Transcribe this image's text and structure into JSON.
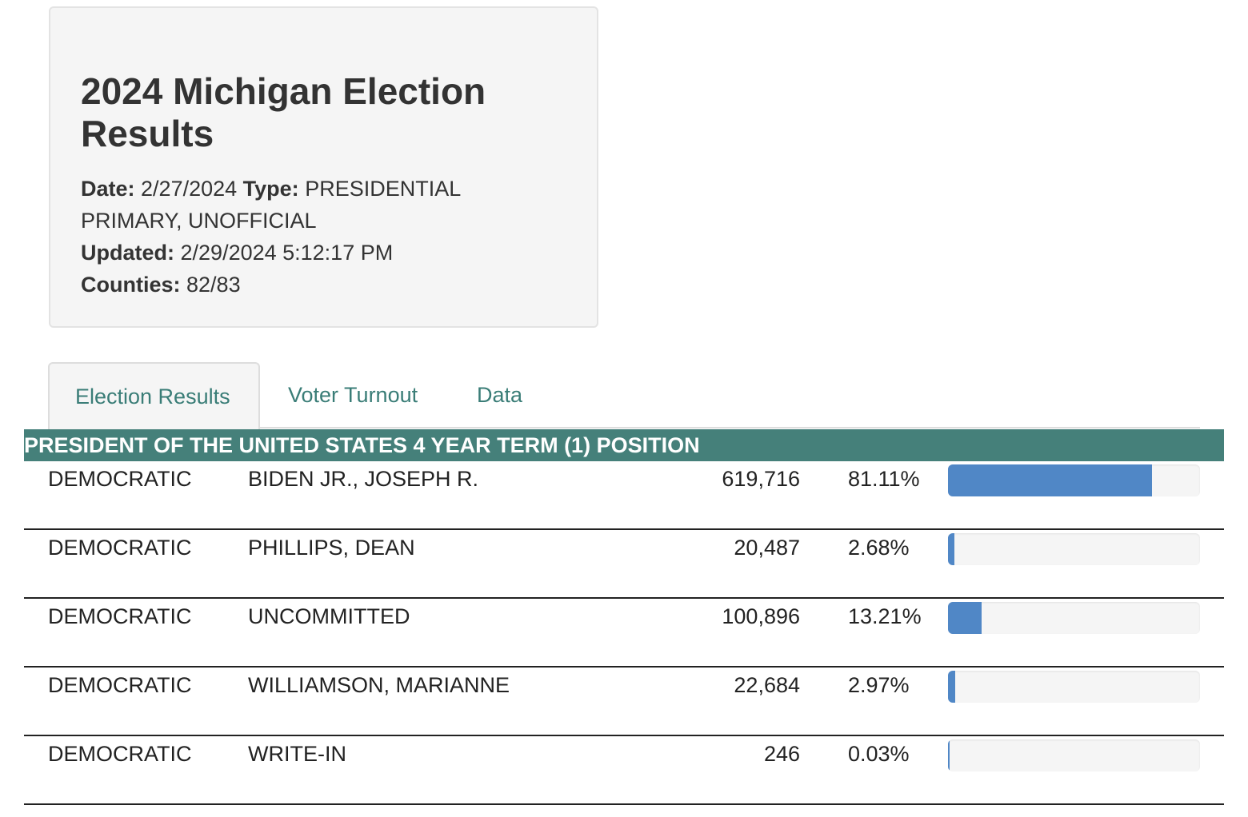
{
  "info": {
    "title": "2024 Michigan Election Results",
    "date_label": "Date:",
    "date_value": "2/27/2024",
    "type_label": "Type:",
    "type_value": "PRESIDENTIAL PRIMARY, UNOFFICIAL",
    "updated_label": "Updated:",
    "updated_value": "2/29/2024 5:12:17 PM",
    "counties_label": "Counties:",
    "counties_value": "82/83"
  },
  "tabs": [
    {
      "label": "Election Results",
      "active": true
    },
    {
      "label": "Voter Turnout",
      "active": false
    },
    {
      "label": "Data",
      "active": false
    }
  ],
  "race": {
    "title": "PRESIDENT OF THE UNITED STATES 4 YEAR TERM (1) POSITION",
    "rows": [
      {
        "party": "DEMOCRATIC",
        "candidate": "BIDEN JR., JOSEPH R.",
        "votes": "619,716",
        "percent": "81.11%",
        "share": 81.11
      },
      {
        "party": "DEMOCRATIC",
        "candidate": "PHILLIPS, DEAN",
        "votes": "20,487",
        "percent": "2.68%",
        "share": 2.68
      },
      {
        "party": "DEMOCRATIC",
        "candidate": "UNCOMMITTED",
        "votes": "100,896",
        "percent": "13.21%",
        "share": 13.21
      },
      {
        "party": "DEMOCRATIC",
        "candidate": "WILLIAMSON, MARIANNE",
        "votes": "22,684",
        "percent": "2.97%",
        "share": 2.97
      },
      {
        "party": "DEMOCRATIC",
        "candidate": "WRITE-IN",
        "votes": "246",
        "percent": "0.03%",
        "share": 0.03
      }
    ]
  },
  "colors": {
    "accent": "#45807a",
    "tab_text": "#3a7d77",
    "bar_fill": "#5087c6",
    "bar_track": "#f5f5f5"
  }
}
